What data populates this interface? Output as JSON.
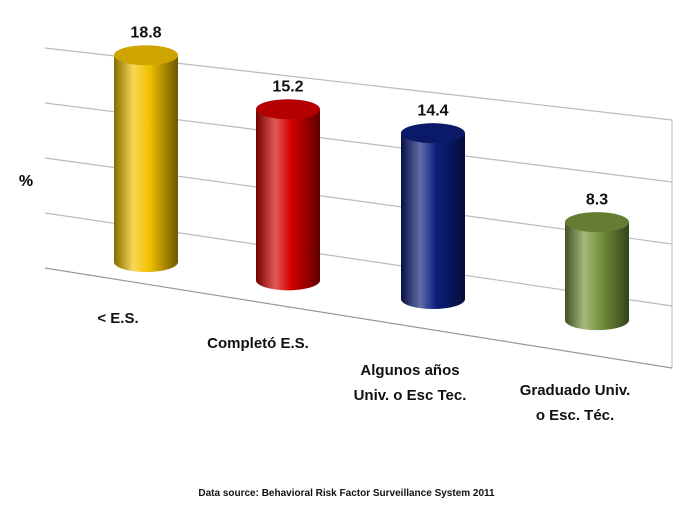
{
  "chart_data": {
    "type": "bar3d",
    "y_label": "%",
    "categories": [
      "< E.S.",
      "Completó E.S.",
      "Algunos años\nUniv. o Esc Tec.",
      "Graduado Univ.\no Esc. Téc."
    ],
    "values": [
      18.8,
      15.2,
      14.4,
      8.3
    ],
    "colors": [
      "#f2c200",
      "#d40000",
      "#0c1e7c",
      "#76933c"
    ],
    "ylim": [
      0,
      20
    ],
    "yticks": [
      0,
      5,
      10,
      15,
      20
    ],
    "grid": true,
    "source": "Data source: Behavioral Risk  Factor Surveillance System 2011"
  }
}
